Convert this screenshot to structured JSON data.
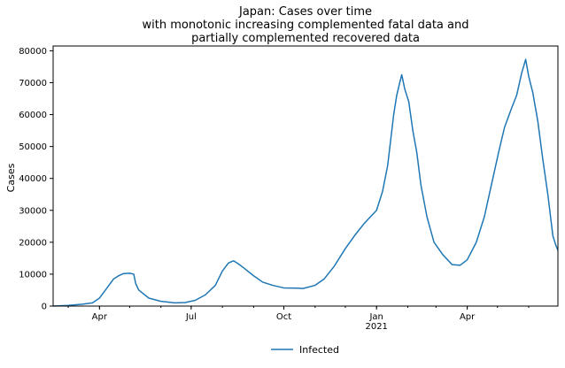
{
  "chart_data": {
    "type": "line",
    "title_lines": [
      "Japan: Cases over time",
      "with monotonic increasing complemented fatal data and",
      "partially complemented recovered data"
    ],
    "xlabel": "",
    "ylabel": "Cases",
    "x_range": [
      "2020-02-15",
      "2021-06-30"
    ],
    "ylim": [
      0,
      81500
    ],
    "grid": false,
    "legend_placement": "bottom-center",
    "x_ticks": [
      {
        "date": "2020-04-01",
        "label": "Apr",
        "sublabel": ""
      },
      {
        "date": "2020-07-01",
        "label": "Jul",
        "sublabel": ""
      },
      {
        "date": "2020-10-01",
        "label": "Oct",
        "sublabel": ""
      },
      {
        "date": "2021-01-01",
        "label": "Jan",
        "sublabel": "2021"
      },
      {
        "date": "2021-04-01",
        "label": "Apr",
        "sublabel": ""
      }
    ],
    "y_ticks": [
      0,
      10000,
      20000,
      30000,
      40000,
      50000,
      60000,
      70000,
      80000
    ],
    "series": [
      {
        "name": "Infected",
        "color": "#1f77b4",
        "points": [
          [
            "2020-02-15",
            0
          ],
          [
            "2020-03-01",
            200
          ],
          [
            "2020-03-15",
            600
          ],
          [
            "2020-03-25",
            1000
          ],
          [
            "2020-04-01",
            2500
          ],
          [
            "2020-04-08",
            5500
          ],
          [
            "2020-04-15",
            8500
          ],
          [
            "2020-04-20",
            9500
          ],
          [
            "2020-04-25",
            10200
          ],
          [
            "2020-05-01",
            10300
          ],
          [
            "2020-05-05",
            10000
          ],
          [
            "2020-05-07",
            7000
          ],
          [
            "2020-05-10",
            5000
          ],
          [
            "2020-05-20",
            2500
          ],
          [
            "2020-06-01",
            1500
          ],
          [
            "2020-06-15",
            1000
          ],
          [
            "2020-06-25",
            1100
          ],
          [
            "2020-07-05",
            1800
          ],
          [
            "2020-07-15",
            3500
          ],
          [
            "2020-07-25",
            6500
          ],
          [
            "2020-08-01",
            11000
          ],
          [
            "2020-08-07",
            13500
          ],
          [
            "2020-08-12",
            14200
          ],
          [
            "2020-08-17",
            13200
          ],
          [
            "2020-08-22",
            12000
          ],
          [
            "2020-09-01",
            9500
          ],
          [
            "2020-09-10",
            7500
          ],
          [
            "2020-09-20",
            6500
          ],
          [
            "2020-10-01",
            5700
          ],
          [
            "2020-10-15",
            5600
          ],
          [
            "2020-10-20",
            5500
          ],
          [
            "2020-11-01",
            6500
          ],
          [
            "2020-11-10",
            8500
          ],
          [
            "2020-11-20",
            12500
          ],
          [
            "2020-12-01",
            18000
          ],
          [
            "2020-12-10",
            22000
          ],
          [
            "2020-12-20",
            26000
          ],
          [
            "2021-01-01",
            30000
          ],
          [
            "2021-01-07",
            36000
          ],
          [
            "2021-01-12",
            44000
          ],
          [
            "2021-01-15",
            52000
          ],
          [
            "2021-01-18",
            60000
          ],
          [
            "2021-01-21",
            66000
          ],
          [
            "2021-01-24",
            70000
          ],
          [
            "2021-01-26",
            72500
          ],
          [
            "2021-01-29",
            68000
          ],
          [
            "2021-02-02",
            64000
          ],
          [
            "2021-02-06",
            55000
          ],
          [
            "2021-02-10",
            48000
          ],
          [
            "2021-02-14",
            38000
          ],
          [
            "2021-02-20",
            28000
          ],
          [
            "2021-02-27",
            20000
          ],
          [
            "2021-03-08",
            16000
          ],
          [
            "2021-03-17",
            13000
          ],
          [
            "2021-03-25",
            12800
          ],
          [
            "2021-04-01",
            14500
          ],
          [
            "2021-04-10",
            20000
          ],
          [
            "2021-04-18",
            28000
          ],
          [
            "2021-04-25",
            38000
          ],
          [
            "2021-05-02",
            48000
          ],
          [
            "2021-05-08",
            56000
          ],
          [
            "2021-05-15",
            62000
          ],
          [
            "2021-05-20",
            66000
          ],
          [
            "2021-05-25",
            73000
          ],
          [
            "2021-05-29",
            77300
          ],
          [
            "2021-06-01",
            72000
          ],
          [
            "2021-06-05",
            67000
          ],
          [
            "2021-06-10",
            58000
          ],
          [
            "2021-06-15",
            46000
          ],
          [
            "2021-06-20",
            35000
          ],
          [
            "2021-06-25",
            22000
          ],
          [
            "2021-06-28",
            19000
          ],
          [
            "2021-06-30",
            17500
          ]
        ]
      }
    ]
  }
}
